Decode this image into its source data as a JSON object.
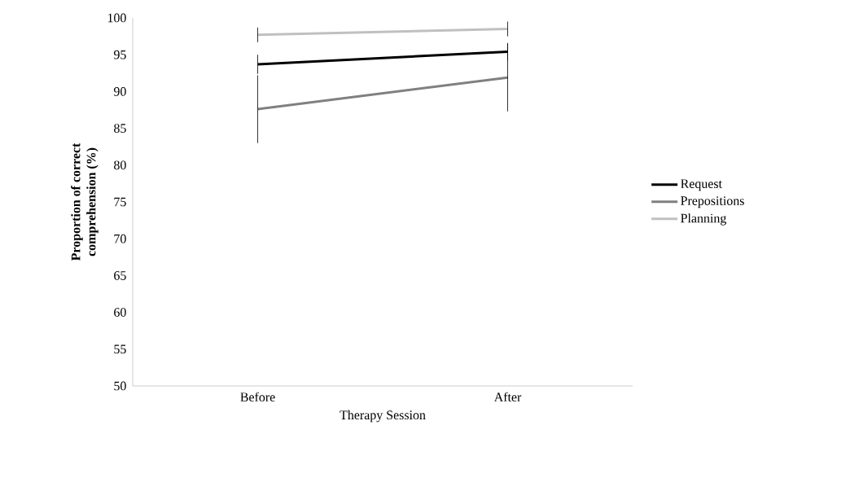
{
  "chart_data": {
    "type": "line",
    "xlabel": "Therapy Session",
    "ylabel": "Proportion of correct comprehension (%)",
    "categories": [
      "Before",
      "After"
    ],
    "series": [
      {
        "name": "Request",
        "color": "#000000",
        "values": [
          93.7,
          95.4
        ],
        "errors": [
          1.3,
          1.2
        ]
      },
      {
        "name": "Prepositions",
        "color": "#808080",
        "values": [
          87.6,
          91.9
        ],
        "errors": [
          4.6,
          4.6
        ]
      },
      {
        "name": "Planning",
        "color": "#c0c0c0",
        "values": [
          97.7,
          98.5
        ],
        "errors": [
          1,
          1
        ]
      }
    ],
    "ylim": [
      50,
      100
    ],
    "yticks": [
      50,
      55,
      60,
      65,
      70,
      75,
      80,
      85,
      90,
      95,
      100
    ],
    "legend": "right",
    "marker": "none",
    "line_style": "solid"
  }
}
